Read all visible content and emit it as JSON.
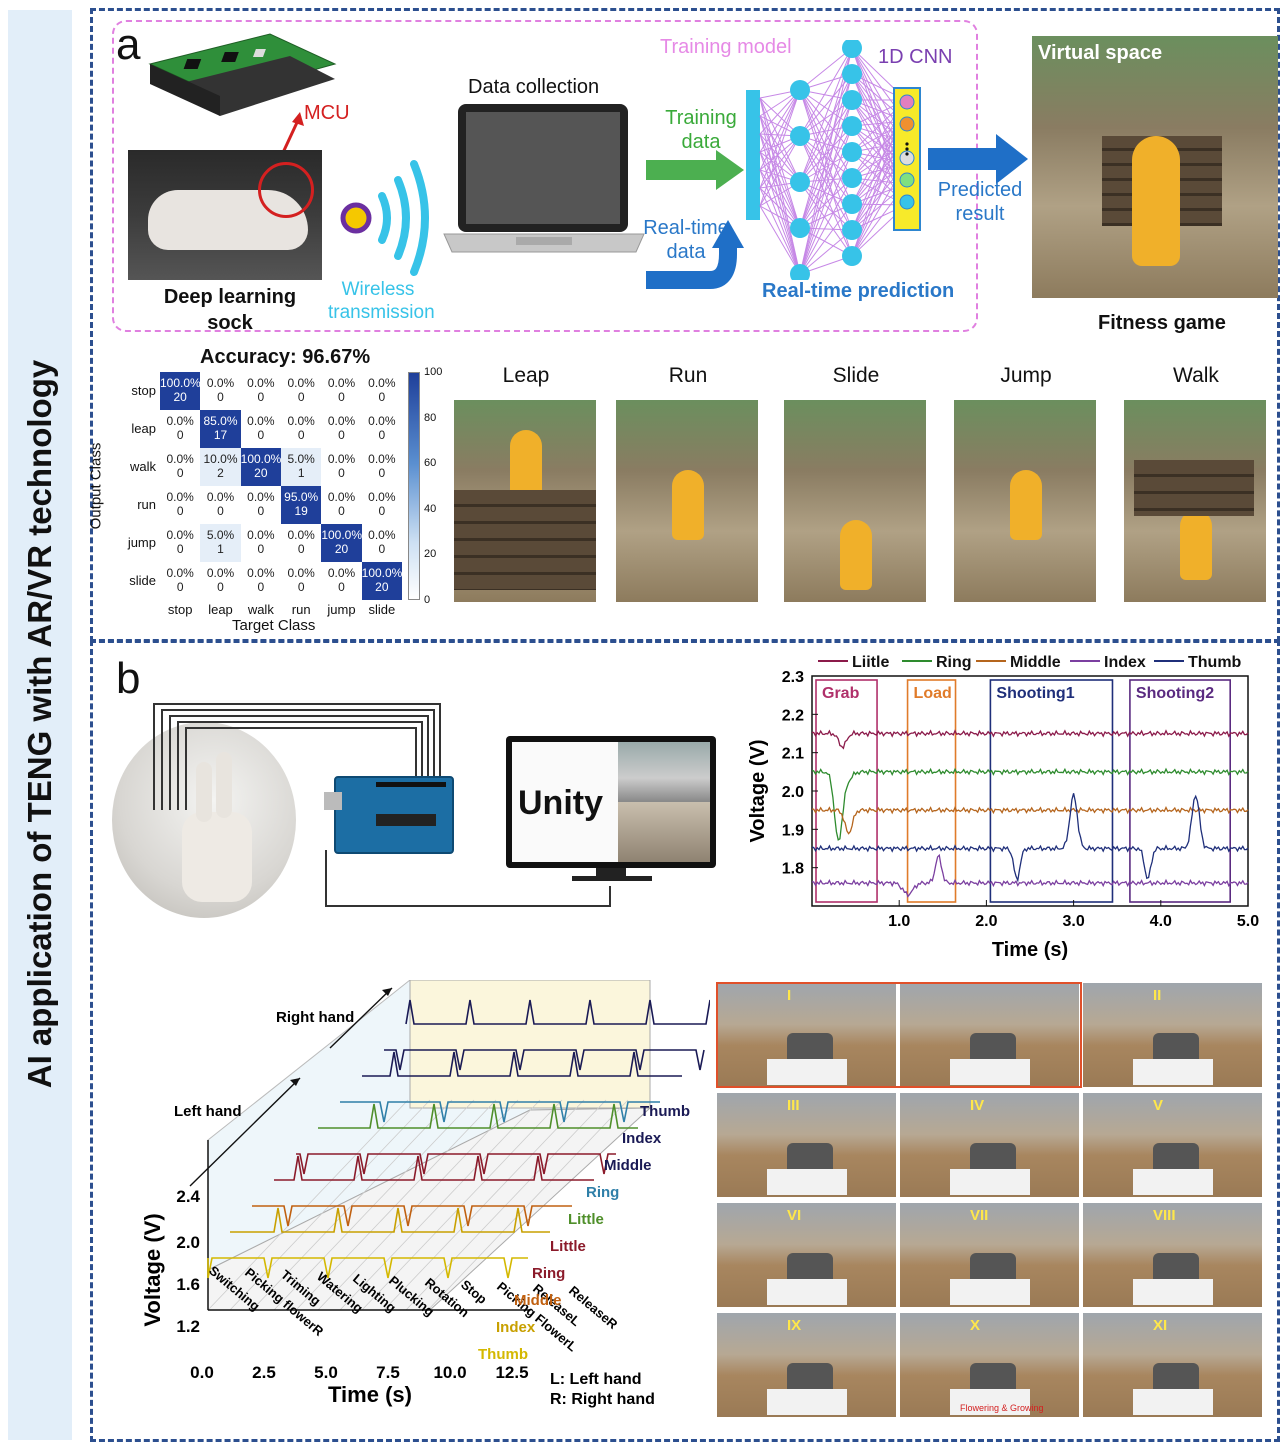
{
  "side_title": "AI application of TENG with AR/VR technology",
  "panel_a": {
    "letter": "a",
    "mcu": "MCU",
    "sock_label": "Deep learning sock",
    "wireless": "Wireless transmission",
    "data_collection": "Data collection",
    "training_model": "Training model",
    "cnn": "1D CNN",
    "training_data": "Training data",
    "realtime_data": "Real-time data",
    "realtime_prediction": "Real-time prediction",
    "predicted_result": "Predicted result",
    "virtual_space": "Virtual space",
    "fitness_game": "Fitness game",
    "confusion": {
      "title": "Accuracy: 96.67%",
      "ylabel": "Output Class",
      "xlabel": "Target Class",
      "row_labels": [
        "stop",
        "leap",
        "walk",
        "run",
        "jump",
        "slide"
      ],
      "col_labels": [
        "stop",
        "leap",
        "walk",
        "run",
        "jump",
        "slide"
      ],
      "cells": [
        [
          [
            "100.0%",
            "20"
          ],
          [
            "0.0%",
            "0"
          ],
          [
            "0.0%",
            "0"
          ],
          [
            "0.0%",
            "0"
          ],
          [
            "0.0%",
            "0"
          ],
          [
            "0.0%",
            "0"
          ]
        ],
        [
          [
            "0.0%",
            "0"
          ],
          [
            "85.0%",
            "17"
          ],
          [
            "0.0%",
            "0"
          ],
          [
            "0.0%",
            "0"
          ],
          [
            "0.0%",
            "0"
          ],
          [
            "0.0%",
            "0"
          ]
        ],
        [
          [
            "0.0%",
            "0"
          ],
          [
            "10.0%",
            "2"
          ],
          [
            "100.0%",
            "20"
          ],
          [
            "5.0%",
            "1"
          ],
          [
            "0.0%",
            "0"
          ],
          [
            "0.0%",
            "0"
          ]
        ],
        [
          [
            "0.0%",
            "0"
          ],
          [
            "0.0%",
            "0"
          ],
          [
            "0.0%",
            "0"
          ],
          [
            "95.0%",
            "19"
          ],
          [
            "0.0%",
            "0"
          ],
          [
            "0.0%",
            "0"
          ]
        ],
        [
          [
            "0.0%",
            "0"
          ],
          [
            "5.0%",
            "1"
          ],
          [
            "0.0%",
            "0"
          ],
          [
            "0.0%",
            "0"
          ],
          [
            "100.0%",
            "20"
          ],
          [
            "0.0%",
            "0"
          ]
        ],
        [
          [
            "0.0%",
            "0"
          ],
          [
            "0.0%",
            "0"
          ],
          [
            "0.0%",
            "0"
          ],
          [
            "0.0%",
            "0"
          ],
          [
            "0.0%",
            "0"
          ],
          [
            "100.0%",
            "20"
          ]
        ]
      ],
      "colorbar_ticks": [
        "100",
        "80",
        "60",
        "40",
        "20",
        "0"
      ]
    },
    "actions": [
      "Leap",
      "Run",
      "Slide",
      "Jump",
      "Walk"
    ]
  },
  "panel_b": {
    "letter": "b",
    "unity": "Unity",
    "voltage_chart": {
      "legend": [
        "Liitle",
        "Ring",
        "Middle",
        "Index",
        "Thumb"
      ],
      "colors": [
        "#8b1a4a",
        "#2e8b2e",
        "#b5651d",
        "#7b3fa0",
        "#1f2f7a"
      ],
      "boxes": [
        "Grab",
        "Load",
        "Shooting1",
        "Shooting2"
      ],
      "box_colors": [
        "#b0306a",
        "#e07b2a",
        "#1f2f7a",
        "#5a2a80"
      ],
      "yticks": [
        "2.3",
        "2.2",
        "2.1",
        "2.0",
        "1.9",
        "1.8"
      ],
      "xticks": [
        "1.0",
        "2.0",
        "3.0",
        "4.0",
        "5.0"
      ],
      "ylabel": "Voltage (V)",
      "xlabel": "Time (s)"
    },
    "chart3d": {
      "right_hand": "Right hand",
      "left_hand": "Left hand",
      "ylabel": "Voltage (V)",
      "yticks": [
        "2.4",
        "2.0",
        "1.6",
        "1.2"
      ],
      "xticks": [
        "0.0",
        "2.5",
        "5.0",
        "7.5",
        "10.0",
        "12.5"
      ],
      "xlabel": "Time (s)",
      "actions": [
        "Switching",
        "Picking flowerR",
        "Triming",
        "Watering",
        "Lighting",
        "Plucking",
        "Rotation",
        "Stop",
        "Picking FlowerL",
        "ReleaseL",
        "ReleaseR"
      ],
      "fingers": [
        "Thumb",
        "Index",
        "Middle",
        "Ring",
        "Little",
        "Little",
        "Ring",
        "Middle",
        "Index",
        "Thumb"
      ],
      "finger_colors": [
        "#1a1a55",
        "#1a1a55",
        "#1a1a55",
        "#2f7fa8",
        "#4f8f2a",
        "#8b1a2a",
        "#8b1a2a",
        "#c06010",
        "#c8a000",
        "#d4b800"
      ],
      "legend_l": "L: Left hand",
      "legend_r": "R: Right hand"
    },
    "ar_labels": [
      "I",
      "",
      "II",
      "III",
      "IV",
      "V",
      "VI",
      "VII",
      "VIII",
      "IX",
      "X",
      "XI"
    ],
    "flowering": "Flowering & Growing"
  }
}
